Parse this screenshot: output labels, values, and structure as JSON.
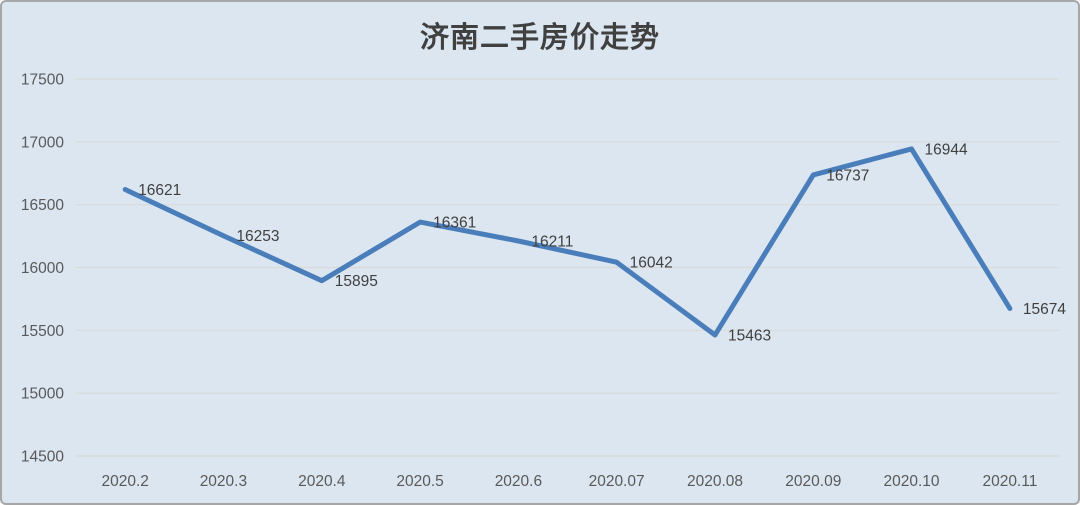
{
  "window": {
    "background_color": "#dce6f1",
    "border_color": "#a6a6a6"
  },
  "chart_data": {
    "type": "line",
    "title": "济南二手房价走势",
    "categories": [
      "2020.2",
      "2020.3",
      "2020.4",
      "2020.5",
      "2020.6",
      "2020.07",
      "2020.08",
      "2020.09",
      "2020.10",
      "2020.11"
    ],
    "values": [
      16621,
      16253,
      15895,
      16361,
      16211,
      16042,
      15463,
      16737,
      16944,
      15674
    ],
    "data_labels_visible": true,
    "xlabel": "",
    "ylabel": "",
    "ylim": [
      14500,
      17500
    ],
    "ytick_step": 500,
    "yticks": [
      14500,
      15000,
      15500,
      16000,
      16500,
      17000,
      17500
    ],
    "grid": true,
    "legend": false,
    "line_color": "#4a7ebb",
    "gridline_color": "#d9dad8",
    "tick_label_color": "#595959",
    "data_label_color": "#404040",
    "plot_background": "#dce6f1"
  }
}
